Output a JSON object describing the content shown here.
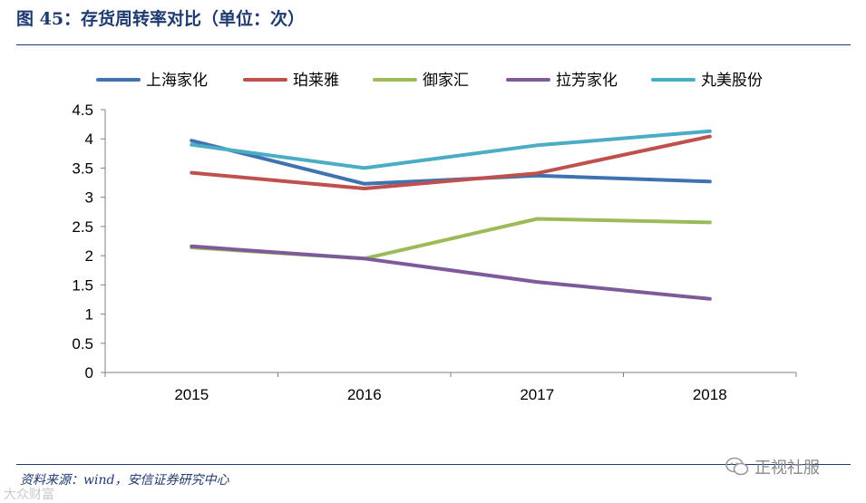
{
  "header": {
    "title": "图 45：存货周转率对比（单位：次）"
  },
  "footer": {
    "source": "资料来源：wind，安信证券研究中心",
    "watermark": "正视社服",
    "corner_mark": "大众财富"
  },
  "chart_data": {
    "type": "line",
    "title": "存货周转率对比（单位：次）",
    "categories": [
      "2015",
      "2016",
      "2017",
      "2018"
    ],
    "ylim": [
      0,
      4.5
    ],
    "yticks": [
      0,
      0.5,
      1,
      1.5,
      2,
      2.5,
      3,
      3.5,
      4,
      4.5
    ],
    "ytick_labels": [
      "0",
      "0.5",
      "1",
      "1.5",
      "2",
      "2.5",
      "3",
      "3.5",
      "4",
      "4.5"
    ],
    "grid": false,
    "legend_position": "top",
    "series": [
      {
        "name": "上海家化",
        "color": "#3f73b0",
        "values": [
          3.97,
          3.23,
          3.37,
          3.27
        ]
      },
      {
        "name": "珀莱雅",
        "color": "#c0504d",
        "values": [
          3.42,
          3.15,
          3.41,
          4.04
        ]
      },
      {
        "name": "御家汇",
        "color": "#9bbb59",
        "values": [
          2.14,
          1.95,
          2.63,
          2.57
        ]
      },
      {
        "name": "拉芳家化",
        "color": "#7e5a9b",
        "values": [
          2.16,
          1.95,
          1.55,
          1.26
        ]
      },
      {
        "name": "丸美股份",
        "color": "#4bacc6",
        "values": [
          3.9,
          3.5,
          3.89,
          4.13
        ]
      }
    ]
  }
}
